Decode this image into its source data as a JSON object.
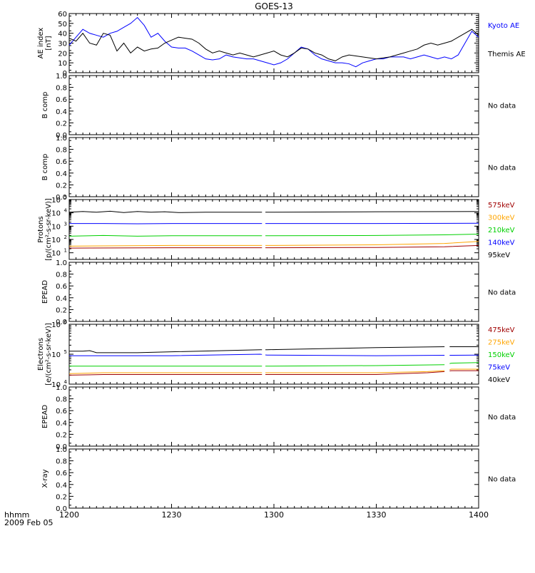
{
  "title": "GOES-13",
  "x_axis": {
    "ticks": [
      "1200",
      "1230",
      "1300",
      "1330",
      "1400"
    ],
    "unit_label": "hhmm",
    "date_label": "2009 Feb 05",
    "range": [
      "1200",
      "1400"
    ]
  },
  "no_data_text": "No data",
  "chart_data": [
    {
      "type": "line",
      "ylabel": "AE index [nT]",
      "ylim": [
        0,
        60
      ],
      "yticks": [
        "0",
        "10",
        "20",
        "30",
        "40",
        "50",
        "60"
      ],
      "series": [
        {
          "name": "Kyoto AE",
          "color": "#0000ff",
          "x_minutes": [
            0,
            2,
            4,
            6,
            8,
            10,
            12,
            14,
            16,
            18,
            20,
            22,
            24,
            26,
            28,
            30,
            32,
            34,
            36,
            38,
            40,
            42,
            44,
            46,
            48,
            50,
            52,
            54,
            56,
            58,
            60,
            62,
            64,
            66,
            68,
            70,
            72,
            74,
            76,
            78,
            80,
            82,
            84,
            86,
            88,
            90,
            92,
            94,
            96,
            98,
            100,
            102,
            104,
            106,
            108,
            110,
            112,
            114,
            116,
            118,
            120
          ],
          "values": [
            28,
            36,
            44,
            40,
            38,
            36,
            40,
            42,
            46,
            50,
            56,
            48,
            36,
            40,
            32,
            26,
            25,
            25,
            22,
            18,
            14,
            13,
            14,
            18,
            16,
            15,
            14,
            14,
            12,
            10,
            8,
            10,
            14,
            20,
            26,
            24,
            18,
            14,
            12,
            10,
            10,
            9,
            6,
            10,
            12,
            14,
            14,
            16,
            16,
            16,
            14,
            16,
            18,
            16,
            14,
            16,
            14,
            18,
            30,
            42,
            36
          ]
        },
        {
          "name": "Themis AE",
          "color": "#000000",
          "x_minutes": [
            0,
            2,
            4,
            6,
            8,
            10,
            12,
            14,
            16,
            18,
            20,
            22,
            24,
            26,
            28,
            30,
            32,
            34,
            36,
            38,
            40,
            42,
            44,
            46,
            48,
            50,
            52,
            54,
            56,
            58,
            60,
            62,
            64,
            66,
            68,
            70,
            72,
            74,
            76,
            78,
            80,
            82,
            84,
            86,
            88,
            90,
            92,
            94,
            96,
            98,
            100,
            102,
            104,
            106,
            108,
            110,
            112,
            114,
            116,
            118,
            120
          ],
          "values": [
            35,
            32,
            40,
            30,
            28,
            40,
            38,
            22,
            30,
            20,
            26,
            22,
            24,
            25,
            30,
            33,
            36,
            35,
            34,
            30,
            24,
            20,
            22,
            20,
            18,
            20,
            18,
            16,
            18,
            20,
            22,
            18,
            16,
            20,
            25,
            24,
            20,
            18,
            14,
            12,
            16,
            18,
            17,
            16,
            15,
            14,
            15,
            16,
            18,
            20,
            22,
            24,
            28,
            30,
            28,
            30,
            32,
            36,
            40,
            44,
            38
          ]
        }
      ]
    },
    {
      "type": "line",
      "ylabel": "B comp",
      "ylim": [
        0,
        1
      ],
      "yticks": [
        "0.0",
        "0.2",
        "0.4",
        "0.6",
        "0.8",
        "1.0"
      ],
      "series": [],
      "status": "No data"
    },
    {
      "type": "line",
      "ylabel": "B comp",
      "ylim": [
        0,
        1
      ],
      "yticks": [
        "0.0",
        "0.2",
        "0.4",
        "0.6",
        "0.8",
        "1.0"
      ],
      "series": [],
      "status": "No data"
    },
    {
      "type": "line",
      "ylabel": "Protons [p/(cm²-s-sr-keV)]",
      "log": true,
      "ylim_exp": [
        0.5,
        5
      ],
      "ytick_exps": [
        1,
        2,
        3,
        4,
        5
      ],
      "gap_minutes": [
        56.5,
        57.5
      ],
      "series": [
        {
          "name": "575keV",
          "color": "#a00000",
          "x_minutes": [
            0,
            30,
            60,
            90,
            110,
            120
          ],
          "log10": [
            1.35,
            1.38,
            1.38,
            1.4,
            1.45,
            1.55
          ]
        },
        {
          "name": "300keV",
          "color": "#ffa500",
          "x_minutes": [
            0,
            30,
            60,
            90,
            110,
            120
          ],
          "log10": [
            1.5,
            1.55,
            1.55,
            1.6,
            1.7,
            1.85
          ]
        },
        {
          "name": "210keV",
          "color": "#00d000",
          "x_minutes": [
            0,
            10,
            20,
            30,
            60,
            90,
            110,
            120
          ],
          "log10": [
            2.25,
            2.3,
            2.25,
            2.28,
            2.28,
            2.3,
            2.35,
            2.4
          ]
        },
        {
          "name": "140keV",
          "color": "#0000ff",
          "x_minutes": [
            0,
            10,
            20,
            30,
            60,
            90,
            120
          ],
          "log10": [
            3.2,
            3.2,
            3.18,
            3.2,
            3.2,
            3.2,
            3.22
          ]
        },
        {
          "name": "95keV",
          "color": "#000000",
          "x_minutes": [
            0,
            4,
            8,
            12,
            16,
            20,
            24,
            28,
            32,
            40,
            50,
            60,
            90,
            120
          ],
          "log10": [
            4.05,
            4.1,
            4.05,
            4.12,
            4.02,
            4.1,
            4.05,
            4.08,
            4.02,
            4.05,
            4.05,
            4.05,
            4.08,
            4.1
          ]
        }
      ]
    },
    {
      "type": "line",
      "ylabel": "EPEAD",
      "ylim": [
        0,
        1
      ],
      "yticks": [
        "0.0",
        "0.2",
        "0.4",
        "0.6",
        "0.8",
        "1.0"
      ],
      "series": [],
      "status": "No data"
    },
    {
      "type": "line",
      "ylabel": "Electrons [e/(cm²-s-sr-keV)]",
      "log": true,
      "ylim_exp": [
        4,
        6
      ],
      "ytick_exps": [
        4,
        5,
        6
      ],
      "gap_minutes": [
        [
          56.5,
          57.5
        ],
        [
          110,
          111.5
        ]
      ],
      "series": [
        {
          "name": "475keV",
          "color": "#a00000",
          "x_minutes": [
            0,
            10,
            30,
            56,
            58,
            90,
            105,
            110,
            112,
            120
          ],
          "log10": [
            4.3,
            4.32,
            4.32,
            4.32,
            4.32,
            4.32,
            4.38,
            4.42,
            4.45,
            4.45
          ]
        },
        {
          "name": "275keV",
          "color": "#ffa500",
          "x_minutes": [
            0,
            10,
            30,
            56,
            58,
            90,
            105,
            110,
            112,
            120
          ],
          "log10": [
            4.35,
            4.38,
            4.38,
            4.38,
            4.38,
            4.38,
            4.42,
            4.45,
            4.5,
            4.5
          ]
        },
        {
          "name": "150keV",
          "color": "#00d000",
          "x_minutes": [
            0,
            30,
            56,
            58,
            90,
            110,
            112,
            120
          ],
          "log10": [
            4.6,
            4.6,
            4.6,
            4.6,
            4.62,
            4.65,
            4.7,
            4.72
          ]
        },
        {
          "name": "75keV",
          "color": "#0000ff",
          "x_minutes": [
            0,
            10,
            30,
            56,
            58,
            90,
            120
          ],
          "log10": [
            4.95,
            4.95,
            4.95,
            5.0,
            4.97,
            4.95,
            4.97
          ]
        },
        {
          "name": "40keV",
          "color": "#000000",
          "x_minutes": [
            0,
            4,
            6,
            8,
            12,
            20,
            30,
            56,
            58,
            90,
            110,
            112,
            120
          ],
          "log10": [
            5.1,
            5.1,
            5.12,
            5.05,
            5.05,
            5.05,
            5.08,
            5.15,
            5.15,
            5.22,
            5.25,
            5.25,
            5.25
          ]
        }
      ]
    },
    {
      "type": "line",
      "ylabel": "EPEAD",
      "ylim": [
        0,
        1
      ],
      "yticks": [
        "0.0",
        "0.2",
        "0.4",
        "0.6",
        "0.8",
        "1.0"
      ],
      "series": [],
      "status": "No data"
    },
    {
      "type": "line",
      "ylabel": "X-ray",
      "ylim": [
        0,
        1
      ],
      "yticks": [
        "0.0",
        "0.2",
        "0.4",
        "0.6",
        "0.8",
        "1.0"
      ],
      "series": [],
      "status": "No data"
    }
  ]
}
